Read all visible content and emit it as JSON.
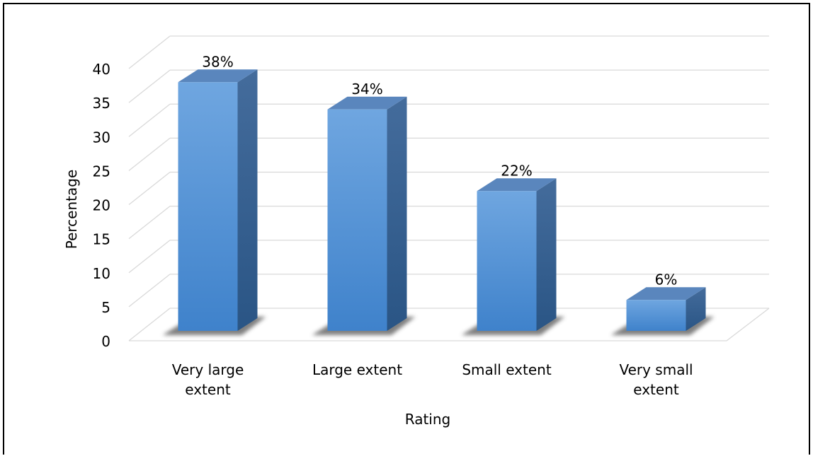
{
  "chart_data": {
    "type": "bar",
    "style": "3d-column",
    "title": "",
    "categories": [
      [
        "Very large",
        "extent"
      ],
      [
        "Large extent"
      ],
      [
        "Small extent"
      ],
      [
        "Very small",
        "extent"
      ]
    ],
    "values": [
      38,
      34,
      22,
      6
    ],
    "data_labels": [
      "38%",
      "34%",
      "22%",
      "6%"
    ],
    "xlabel": "Rating",
    "ylabel": "Percentage",
    "ylim": [
      0,
      40
    ],
    "yticks": [
      0,
      5,
      10,
      15,
      20,
      25,
      30,
      35,
      40
    ],
    "grid": true,
    "legend": "none",
    "colors": {
      "bar_front_light": "#6fa6e0",
      "bar_front_dark": "#3f82cb",
      "bar_side": "#2f5f93",
      "bar_top": "#5a86bd",
      "gridline": "#d9d9d9",
      "shadow": "#555555"
    }
  }
}
